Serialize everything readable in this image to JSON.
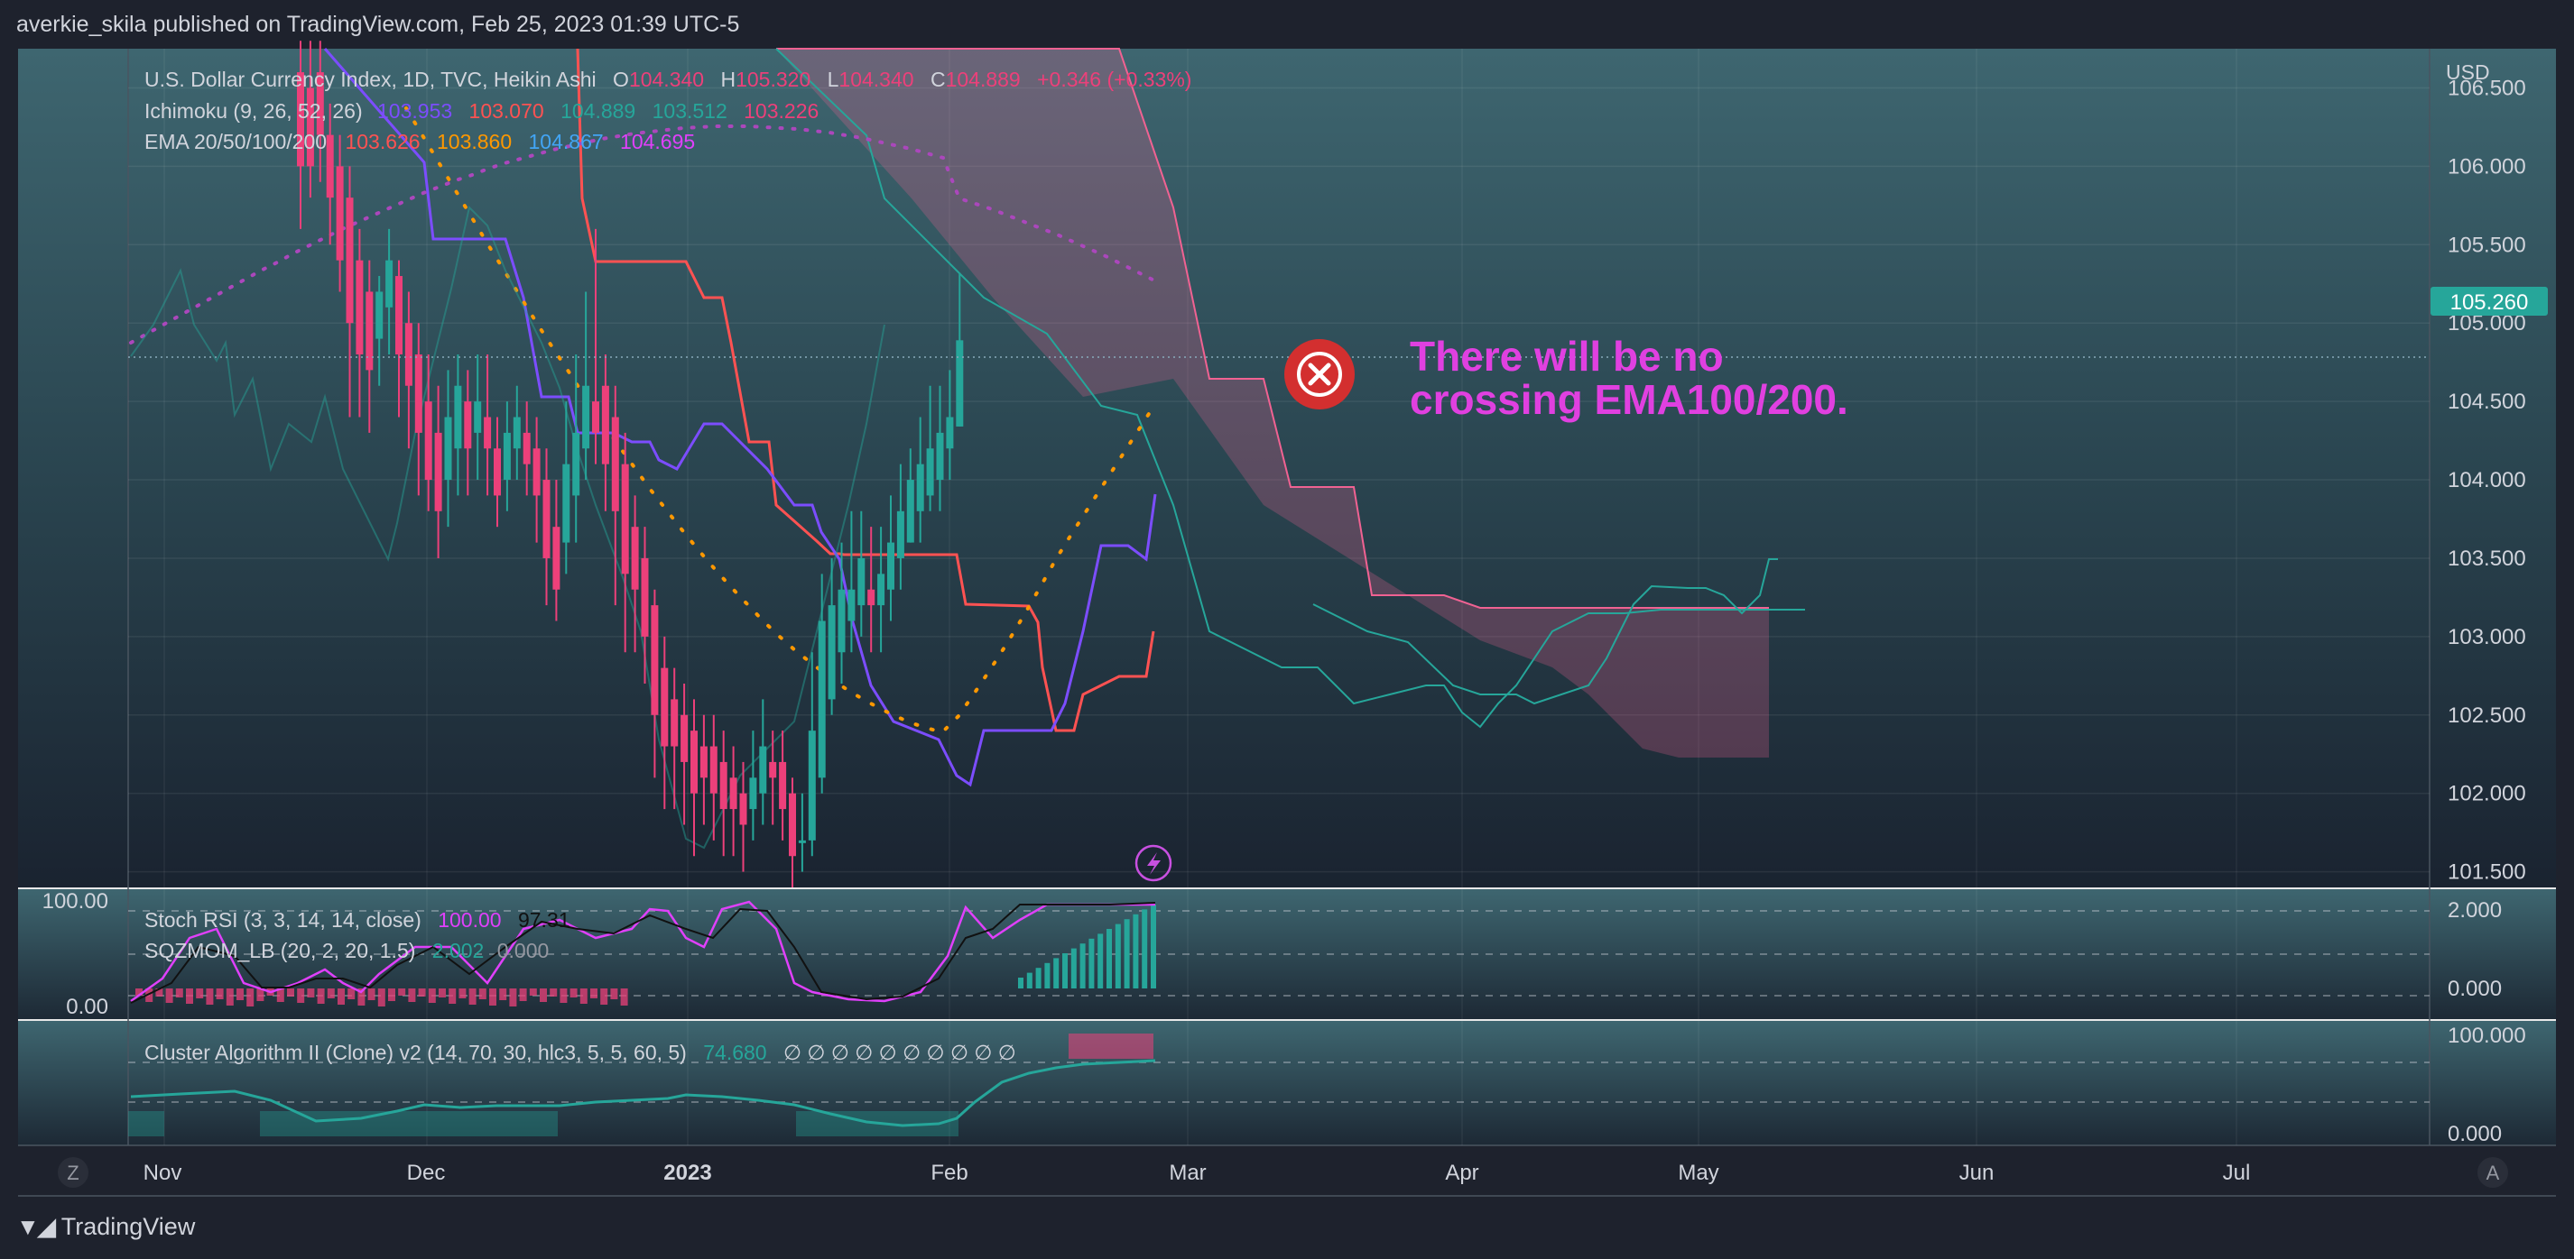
{
  "header": {
    "publish_info": "averkie_skila published on TradingView.com, Feb 25, 2023 01:39 UTC-5"
  },
  "footer": {
    "brand": "TradingView"
  },
  "legend": {
    "main": {
      "symbol": "U.S. Dollar Currency Index, 1D, TVC, Heikin Ashi",
      "o_label": "O",
      "o_value": "104.340",
      "h_label": "H",
      "h_value": "105.320",
      "l_label": "L",
      "l_value": "104.340",
      "c_label": "C",
      "c_value": "104.889",
      "change": "+0.346 (+0.33%)"
    },
    "ichimoku": {
      "label": "Ichimoku (9, 26, 52, 26)",
      "values": [
        "103.953",
        "103.070",
        "104.889",
        "103.512",
        "103.226"
      ]
    },
    "ema": {
      "label": "EMA 20/50/100/200",
      "values": [
        "103.626",
        "103.860",
        "104.867",
        "104.695"
      ]
    },
    "stoch": {
      "label": "Stoch RSI (3, 3, 14, 14, close)",
      "k": "100.00",
      "d": "97.31"
    },
    "sqz": {
      "label": "SQZMOM_LB (20, 2, 20, 1.5)",
      "v1": "2.002",
      "v2": "0.000"
    },
    "cluster": {
      "label": "Cluster Algorithm II (Clone) v2 (14, 70, 30, hlc3, 5, 5, 60, 5)",
      "value": "74.680",
      "empties": "∅ ∅ ∅ ∅ ∅ ∅ ∅ ∅ ∅ ∅"
    }
  },
  "annotation": {
    "line1": "There will be no",
    "line2": "crossing EMA100/200.",
    "text_color": "#e040e0",
    "icon_color": "#d32f2f"
  },
  "price_axis": {
    "currency": "USD",
    "ticks": [
      "106.500",
      "106.000",
      "105.500",
      "105.000",
      "104.500",
      "104.000",
      "103.500",
      "103.000",
      "102.500",
      "102.000",
      "101.500"
    ],
    "current_price": "105.260"
  },
  "stoch_axis": {
    "left_top": "100.00",
    "left_bottom": "0.00",
    "right_top": "2.000",
    "right_bottom": "0.000"
  },
  "cluster_axis": {
    "right_top": "100.000",
    "right_bottom": "0.000"
  },
  "time_axis": {
    "labels": [
      "Nov",
      "Dec",
      "2023",
      "Feb",
      "Mar",
      "Apr",
      "May",
      "Jun",
      "Jul"
    ]
  },
  "corner_buttons": {
    "left": "Z",
    "right": "A"
  },
  "colors": {
    "bull": "#26a69a",
    "bear": "#ec407a",
    "tenkan": "#7c4dff",
    "kijun": "#ff5252",
    "cloud": "#f06292",
    "chikou": "#26a69a",
    "ema100": "#ff9800",
    "ema200": "#ab47bc"
  },
  "chart_data": {
    "type": "candlestick",
    "y_range": [
      101.4,
      106.75
    ],
    "candles": [
      {
        "x": "Nov 21",
        "o": 106.6,
        "c": 106.0,
        "h": 106.8,
        "l": 105.6
      },
      {
        "x": "Nov 22",
        "o": 106.5,
        "c": 106.0,
        "h": 106.8,
        "l": 105.8
      },
      {
        "x": "Nov 23",
        "o": 106.6,
        "c": 106.2,
        "h": 106.8,
        "l": 105.9
      },
      {
        "x": "Nov 24",
        "o": 106.2,
        "c": 105.8,
        "h": 106.4,
        "l": 105.5
      },
      {
        "x": "Nov 25",
        "o": 106.0,
        "c": 105.4,
        "h": 106.2,
        "l": 105.2
      },
      {
        "x": "Nov 28",
        "o": 105.8,
        "c": 105.0,
        "h": 106.0,
        "l": 104.4
      },
      {
        "x": "Nov 29",
        "o": 105.4,
        "c": 104.8,
        "h": 105.6,
        "l": 104.4
      },
      {
        "x": "Nov 30",
        "o": 105.2,
        "c": 104.7,
        "h": 105.4,
        "l": 104.3
      },
      {
        "x": "Dec 1",
        "o": 104.9,
        "c": 105.2,
        "h": 105.3,
        "l": 104.6
      },
      {
        "x": "Dec 2",
        "o": 105.1,
        "c": 105.4,
        "h": 105.6,
        "l": 104.8
      },
      {
        "x": "Dec 5",
        "o": 105.3,
        "c": 104.8,
        "h": 105.4,
        "l": 104.4
      },
      {
        "x": "Dec 6",
        "o": 105.0,
        "c": 104.6,
        "h": 105.2,
        "l": 104.2
      },
      {
        "x": "Dec 7",
        "o": 104.8,
        "c": 104.3,
        "h": 105.0,
        "l": 103.9
      },
      {
        "x": "Dec 8",
        "o": 104.5,
        "c": 104.0,
        "h": 104.8,
        "l": 103.8
      },
      {
        "x": "Dec 9",
        "o": 104.3,
        "c": 103.8,
        "h": 104.6,
        "l": 103.5
      },
      {
        "x": "Dec 12",
        "o": 104.0,
        "c": 104.4,
        "h": 104.7,
        "l": 103.7
      },
      {
        "x": "Dec 13",
        "o": 104.2,
        "c": 104.6,
        "h": 104.8,
        "l": 103.9
      },
      {
        "x": "Dec 14",
        "o": 104.5,
        "c": 104.2,
        "h": 104.7,
        "l": 103.9
      },
      {
        "x": "Dec 15",
        "o": 104.3,
        "c": 104.5,
        "h": 104.8,
        "l": 104.0
      },
      {
        "x": "Dec 16",
        "o": 104.4,
        "c": 104.2,
        "h": 104.8,
        "l": 103.9
      },
      {
        "x": "Dec 19",
        "o": 104.2,
        "c": 103.9,
        "h": 104.4,
        "l": 103.7
      },
      {
        "x": "Dec 20",
        "o": 104.0,
        "c": 104.3,
        "h": 104.5,
        "l": 103.8
      },
      {
        "x": "Dec 21",
        "o": 104.2,
        "c": 104.4,
        "h": 104.6,
        "l": 104.0
      },
      {
        "x": "Dec 22",
        "o": 104.3,
        "c": 104.1,
        "h": 104.5,
        "l": 103.9
      },
      {
        "x": "Dec 23",
        "o": 104.2,
        "c": 103.9,
        "h": 104.4,
        "l": 103.6
      },
      {
        "x": "Dec 27",
        "o": 104.0,
        "c": 103.5,
        "h": 104.2,
        "l": 103.2
      },
      {
        "x": "Dec 28",
        "o": 103.7,
        "c": 103.3,
        "h": 104.0,
        "l": 103.1
      },
      {
        "x": "Dec 29",
        "o": 103.6,
        "c": 104.1,
        "h": 104.5,
        "l": 103.4
      },
      {
        "x": "Dec 30",
        "o": 103.9,
        "c": 104.3,
        "h": 104.8,
        "l": 103.6
      },
      {
        "x": "Jan 3",
        "o": 104.2,
        "c": 104.6,
        "h": 105.2,
        "l": 104.0
      },
      {
        "x": "Jan 4",
        "o": 104.5,
        "c": 104.3,
        "h": 105.6,
        "l": 104.1
      },
      {
        "x": "Jan 5",
        "o": 104.6,
        "c": 104.1,
        "h": 104.8,
        "l": 103.8
      },
      {
        "x": "Jan 6",
        "o": 104.4,
        "c": 103.8,
        "h": 104.6,
        "l": 103.2
      },
      {
        "x": "Jan 9",
        "o": 104.1,
        "c": 103.4,
        "h": 104.3,
        "l": 102.9
      },
      {
        "x": "Jan 10",
        "o": 103.7,
        "c": 103.3,
        "h": 103.9,
        "l": 102.9
      },
      {
        "x": "Jan 11",
        "o": 103.5,
        "c": 103.0,
        "h": 103.7,
        "l": 102.7
      },
      {
        "x": "Jan 12",
        "o": 103.2,
        "c": 102.5,
        "h": 103.3,
        "l": 102.1
      },
      {
        "x": "Jan 13",
        "o": 102.8,
        "c": 102.3,
        "h": 103.0,
        "l": 101.9
      },
      {
        "x": "Jan 16",
        "o": 102.6,
        "c": 102.3,
        "h": 102.8,
        "l": 101.9
      },
      {
        "x": "Jan 17",
        "o": 102.5,
        "c": 102.2,
        "h": 102.7,
        "l": 101.8
      },
      {
        "x": "Jan 18",
        "o": 102.4,
        "c": 102.0,
        "h": 102.6,
        "l": 101.6
      },
      {
        "x": "Jan 19",
        "o": 102.3,
        "c": 102.1,
        "h": 102.5,
        "l": 101.8
      },
      {
        "x": "Jan 20",
        "o": 102.3,
        "c": 102.0,
        "h": 102.5,
        "l": 101.7
      },
      {
        "x": "Jan 23",
        "o": 102.2,
        "c": 101.9,
        "h": 102.4,
        "l": 101.6
      },
      {
        "x": "Jan 24",
        "o": 102.1,
        "c": 101.9,
        "h": 102.3,
        "l": 101.6
      },
      {
        "x": "Jan 25",
        "o": 102.0,
        "c": 101.8,
        "h": 102.2,
        "l": 101.5
      },
      {
        "x": "Jan 26",
        "o": 101.9,
        "c": 102.1,
        "h": 102.4,
        "l": 101.7
      },
      {
        "x": "Jan 27",
        "o": 102.0,
        "c": 102.3,
        "h": 102.6,
        "l": 101.8
      },
      {
        "x": "Jan 30",
        "o": 102.2,
        "c": 102.1,
        "h": 102.4,
        "l": 101.8
      },
      {
        "x": "Jan 31",
        "o": 102.2,
        "c": 101.9,
        "h": 102.4,
        "l": 101.7
      },
      {
        "x": "Feb 1",
        "o": 102.0,
        "c": 101.6,
        "h": 102.1,
        "l": 101.4
      },
      {
        "x": "Feb 2",
        "o": 101.7,
        "c": 101.7,
        "h": 102.0,
        "l": 101.5
      },
      {
        "x": "Feb 3",
        "o": 101.7,
        "c": 102.4,
        "h": 102.9,
        "l": 101.6
      },
      {
        "x": "Feb 6",
        "o": 102.1,
        "c": 103.1,
        "h": 103.4,
        "l": 102.0
      },
      {
        "x": "Feb 7",
        "o": 102.6,
        "c": 103.2,
        "h": 103.5,
        "l": 102.5
      },
      {
        "x": "Feb 8",
        "o": 102.9,
        "c": 103.3,
        "h": 103.6,
        "l": 102.7
      },
      {
        "x": "Feb 9",
        "o": 103.1,
        "c": 103.3,
        "h": 103.8,
        "l": 102.9
      },
      {
        "x": "Feb 10",
        "o": 103.2,
        "c": 103.5,
        "h": 103.8,
        "l": 103.0
      },
      {
        "x": "Feb 13",
        "o": 103.3,
        "c": 103.2,
        "h": 103.7,
        "l": 102.9
      },
      {
        "x": "Feb 14",
        "o": 103.2,
        "c": 103.4,
        "h": 103.7,
        "l": 102.9
      },
      {
        "x": "Feb 15",
        "o": 103.3,
        "c": 103.6,
        "h": 103.9,
        "l": 103.1
      },
      {
        "x": "Feb 16",
        "o": 103.5,
        "c": 103.8,
        "h": 104.1,
        "l": 103.3
      },
      {
        "x": "Feb 17",
        "o": 103.6,
        "c": 104.0,
        "h": 104.2,
        "l": 103.6
      },
      {
        "x": "Feb 20",
        "o": 103.8,
        "c": 104.1,
        "h": 104.4,
        "l": 103.6
      },
      {
        "x": "Feb 21",
        "o": 103.9,
        "c": 104.2,
        "h": 104.6,
        "l": 103.8
      },
      {
        "x": "Feb 22",
        "o": 104.0,
        "c": 104.3,
        "h": 104.6,
        "l": 103.8
      },
      {
        "x": "Feb 23",
        "o": 104.2,
        "c": 104.4,
        "h": 104.7,
        "l": 104.0
      },
      {
        "x": "Feb 24",
        "o": 104.34,
        "c": 104.89,
        "h": 105.32,
        "l": 104.34
      }
    ]
  }
}
